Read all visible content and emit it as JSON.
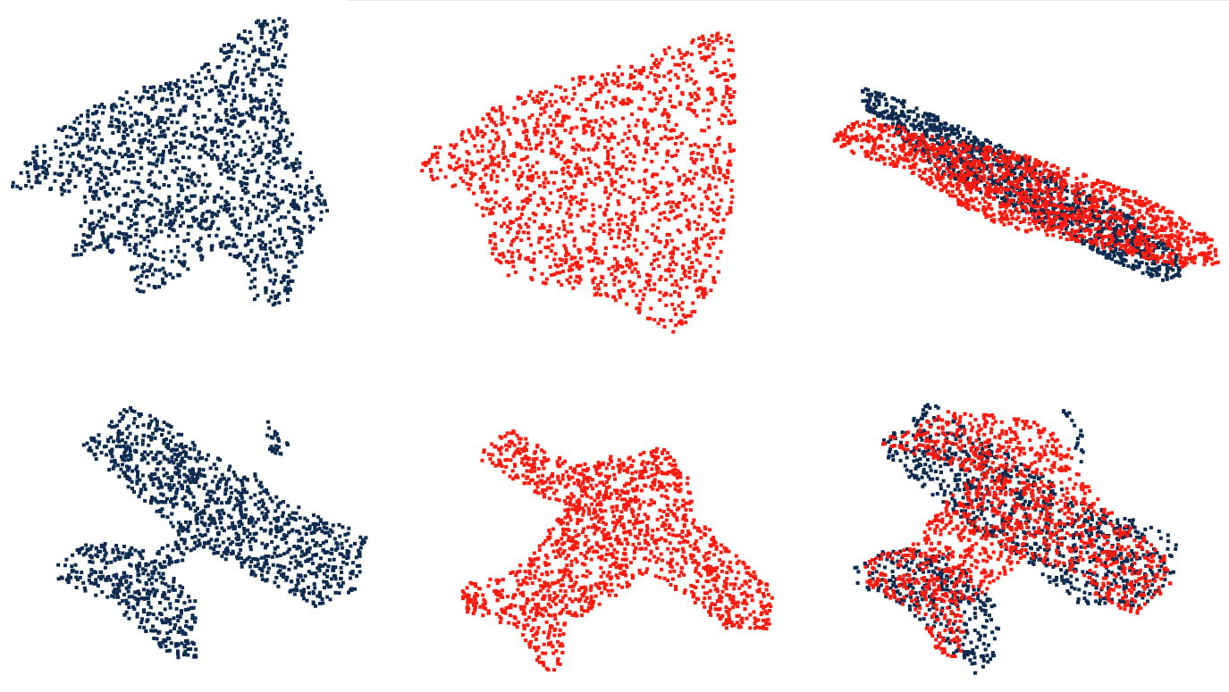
{
  "figure": {
    "colors": {
      "point_set_a": "#0d2a4f",
      "point_set_b": "#ff1a0f",
      "background": "#ffffff"
    },
    "rows": [
      {
        "panels": [
          {
            "content": "point_set_a",
            "shape": "leaf"
          },
          {
            "content": "point_set_b",
            "shape": "quad"
          },
          {
            "content": "overlay",
            "shape": "side_view"
          }
        ]
      },
      {
        "panels": [
          {
            "content": "point_set_a",
            "shape": "plane_a"
          },
          {
            "content": "point_set_b",
            "shape": "plane_b"
          },
          {
            "content": "overlay",
            "shape": "plane_overlay"
          }
        ]
      }
    ]
  }
}
